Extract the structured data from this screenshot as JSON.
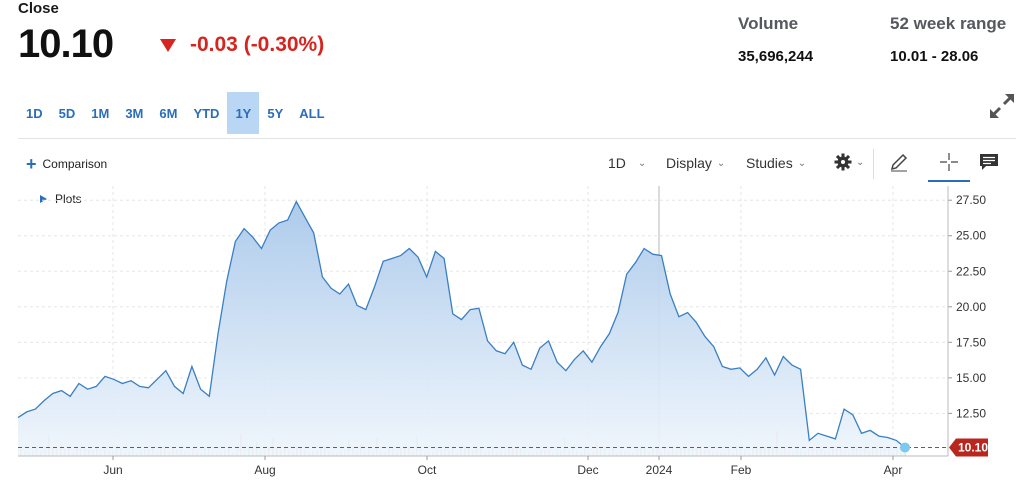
{
  "header": {
    "close_label": "Close",
    "price": "10.10",
    "change": "-0.03 (-0.30%)",
    "change_color": "#d6251e",
    "volume_label": "Volume",
    "volume_value": "35,696,244",
    "range_label": "52 week range",
    "range_value": "10.01 - 28.06"
  },
  "ranges": [
    {
      "label": "1D",
      "active": false
    },
    {
      "label": "5D",
      "active": false
    },
    {
      "label": "1M",
      "active": false
    },
    {
      "label": "3M",
      "active": false
    },
    {
      "label": "6M",
      "active": false
    },
    {
      "label": "YTD",
      "active": false
    },
    {
      "label": "1Y",
      "active": true
    },
    {
      "label": "5Y",
      "active": false
    },
    {
      "label": "ALL",
      "active": false
    }
  ],
  "toolbar": {
    "comparison_label": "Comparison",
    "interval_label": "1D",
    "display_label": "Display",
    "studies_label": "Studies",
    "plots_label": "Plots",
    "icons": [
      "gear-icon",
      "pencil-icon",
      "crosshair-icon",
      "comment-icon",
      "expand-icon"
    ]
  },
  "colors": {
    "accent": "#2a6ebb",
    "line": "#3a7fc2",
    "area_top": "#a9c8ea",
    "area_bottom": "#eef5fc",
    "last_price_marker": "#c0392b"
  },
  "chart_data": {
    "type": "area",
    "x_ticks": [
      "Jun",
      "Aug",
      "Oct",
      "Dec",
      "2024",
      "Feb",
      "Apr"
    ],
    "y_ticks": [
      "27.50",
      "25.00",
      "22.50",
      "20.00",
      "17.50",
      "15.00",
      "12.50"
    ],
    "ylim": [
      9.5,
      28.5
    ],
    "last_value": 10.1,
    "last_value_label": "10.10",
    "grid": true,
    "series": [
      {
        "values": [
          12.2,
          12.6,
          12.8,
          13.4,
          13.9,
          14.1,
          13.7,
          14.6,
          14.2,
          14.4,
          15.1,
          14.9,
          14.6,
          14.8,
          14.4,
          14.3,
          14.9,
          15.5,
          14.4,
          13.9,
          15.8,
          14.2,
          13.7,
          18.1,
          21.8,
          24.6,
          25.5,
          24.9,
          24.1,
          25.4,
          25.9,
          26.1,
          27.4,
          26.3,
          25.2,
          22.1,
          21.3,
          20.9,
          21.6,
          20.1,
          19.8,
          21.4,
          23.2,
          23.4,
          23.6,
          24.1,
          23.5,
          22.1,
          23.9,
          23.4,
          19.5,
          19.1,
          19.8,
          19.9,
          17.6,
          16.9,
          16.7,
          17.5,
          15.9,
          15.6,
          17.1,
          17.6,
          16.1,
          15.5,
          16.3,
          16.9,
          16.1,
          17.2,
          18.1,
          19.6,
          22.3,
          23.1,
          24.1,
          23.7,
          23.6,
          20.9,
          19.3,
          19.6,
          18.9,
          17.9,
          17.2,
          15.8,
          15.6,
          15.7,
          15.1,
          15.6,
          16.4,
          15.2,
          16.5,
          15.9,
          15.6,
          10.6,
          11.1,
          10.9,
          10.7,
          12.8,
          12.4,
          11.1,
          11.3,
          10.9,
          10.8,
          10.6,
          10.1
        ]
      }
    ]
  }
}
